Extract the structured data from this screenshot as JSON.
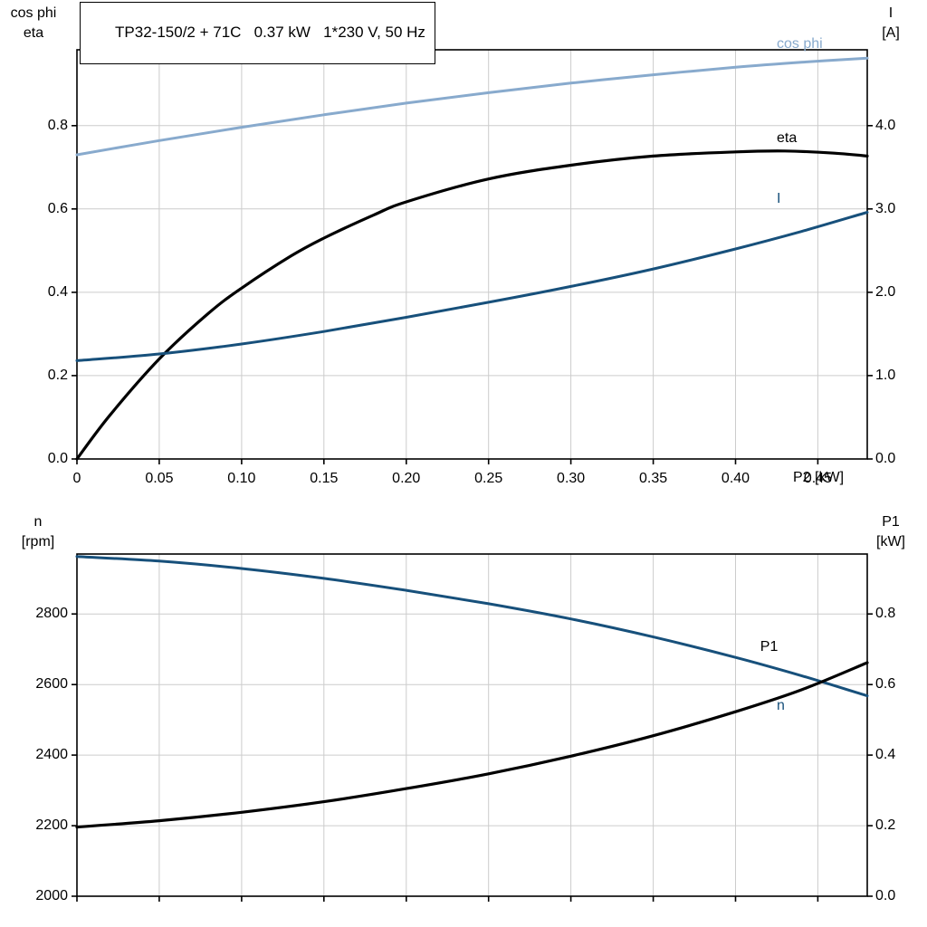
{
  "title_box": {
    "text": "TP32-150/2 + 71C   0.37 kW   1*230 V, 50 Hz"
  },
  "colors": {
    "light_blue": "#88aacd",
    "dark_blue": "#17507b",
    "black": "#000000",
    "grid": "#cccccc",
    "axis": "#000000"
  },
  "chart_data": [
    {
      "type": "line",
      "x_axis": {
        "min": 0,
        "max": 0.48,
        "ticks": [
          0,
          0.05,
          0.1,
          0.15,
          0.2,
          0.25,
          0.3,
          0.35,
          0.4,
          0.45
        ],
        "tick_labels": [
          "0",
          "0.05",
          "0.10",
          "0.15",
          "0.20",
          "0.25",
          "0.30",
          "0.35",
          "0.40",
          "0.45"
        ],
        "label": "P2 [kW]",
        "show_tick_labels": true
      },
      "y_left": {
        "min": 0,
        "max": 0.982,
        "ticks": [
          0.0,
          0.2,
          0.4,
          0.6,
          0.8
        ],
        "tick_labels": [
          "0.0",
          "0.2",
          "0.4",
          "0.6",
          "0.8"
        ],
        "label_lines": [
          "cos phi",
          "eta"
        ]
      },
      "y_right": {
        "min": 0,
        "max": 4.91,
        "ticks": [
          0.0,
          1.0,
          2.0,
          3.0,
          4.0
        ],
        "tick_labels": [
          "0.0",
          "1.0",
          "2.0",
          "3.0",
          "4.0"
        ],
        "label_lines": [
          "I",
          "[A]"
        ]
      },
      "series": [
        {
          "name": "cos phi",
          "axis": "left",
          "color_key": "light_blue",
          "width": 3,
          "points": [
            [
              0,
              0.73
            ],
            [
              0.05,
              0.764
            ],
            [
              0.1,
              0.796
            ],
            [
              0.15,
              0.826
            ],
            [
              0.2,
              0.854
            ],
            [
              0.25,
              0.879
            ],
            [
              0.3,
              0.902
            ],
            [
              0.35,
              0.922
            ],
            [
              0.4,
              0.94
            ],
            [
              0.44,
              0.952
            ],
            [
              0.48,
              0.962
            ]
          ],
          "label": {
            "text": "cos phi",
            "x": 0.425,
            "y": 0.995
          }
        },
        {
          "name": "eta",
          "axis": "left",
          "color_key": "black",
          "width": 3.2,
          "points": [
            [
              0,
              0
            ],
            [
              0.02,
              0.105
            ],
            [
              0.05,
              0.24
            ],
            [
              0.08,
              0.35
            ],
            [
              0.1,
              0.41
            ],
            [
              0.13,
              0.487
            ],
            [
              0.15,
              0.53
            ],
            [
              0.18,
              0.585
            ],
            [
              0.2,
              0.617
            ],
            [
              0.25,
              0.672
            ],
            [
              0.3,
              0.705
            ],
            [
              0.35,
              0.727
            ],
            [
              0.4,
              0.737
            ],
            [
              0.43,
              0.739
            ],
            [
              0.46,
              0.734
            ],
            [
              0.48,
              0.727
            ]
          ],
          "label": {
            "text": "eta",
            "x": 0.425,
            "y": 0.77
          }
        },
        {
          "name": "I",
          "axis": "right",
          "color_key": "dark_blue",
          "width": 3,
          "points": [
            [
              0,
              1.18
            ],
            [
              0.05,
              1.26
            ],
            [
              0.1,
              1.38
            ],
            [
              0.15,
              1.53
            ],
            [
              0.2,
              1.7
            ],
            [
              0.25,
              1.88
            ],
            [
              0.3,
              2.07
            ],
            [
              0.35,
              2.28
            ],
            [
              0.4,
              2.52
            ],
            [
              0.44,
              2.73
            ],
            [
              0.48,
              2.96
            ]
          ],
          "label": {
            "text": "I",
            "x": 0.425,
            "y": 3.12
          }
        }
      ]
    },
    {
      "type": "line",
      "x_axis": {
        "min": 0,
        "max": 0.48,
        "ticks": [
          0,
          0.05,
          0.1,
          0.15,
          0.2,
          0.25,
          0.3,
          0.35,
          0.4,
          0.45
        ],
        "tick_labels": [],
        "label": "",
        "show_tick_labels": false
      },
      "y_left": {
        "min": 2000,
        "max": 2970,
        "ticks": [
          2000,
          2200,
          2400,
          2600,
          2800
        ],
        "tick_labels": [
          "2000",
          "2200",
          "2400",
          "2600",
          "2800"
        ],
        "label_lines": [
          "n",
          "[rpm]"
        ]
      },
      "y_right": {
        "min": 0,
        "max": 0.97,
        "ticks": [
          0.0,
          0.2,
          0.4,
          0.6,
          0.8
        ],
        "tick_labels": [
          "0.0",
          "0.2",
          "0.4",
          "0.6",
          "0.8"
        ],
        "label_lines": [
          "P1",
          "[kW]"
        ]
      },
      "series": [
        {
          "name": "n",
          "axis": "left",
          "color_key": "dark_blue",
          "width": 3,
          "points": [
            [
              0,
              2963
            ],
            [
              0.05,
              2950
            ],
            [
              0.1,
              2929
            ],
            [
              0.15,
              2901
            ],
            [
              0.2,
              2867
            ],
            [
              0.25,
              2829
            ],
            [
              0.3,
              2786
            ],
            [
              0.35,
              2735
            ],
            [
              0.4,
              2677
            ],
            [
              0.44,
              2625
            ],
            [
              0.48,
              2568
            ]
          ],
          "label": {
            "text": "n",
            "x": 0.425,
            "y": 2540
          }
        },
        {
          "name": "P1",
          "axis": "right",
          "color_key": "black",
          "width": 3.2,
          "points": [
            [
              0,
              0.196
            ],
            [
              0.05,
              0.214
            ],
            [
              0.1,
              0.238
            ],
            [
              0.15,
              0.268
            ],
            [
              0.2,
              0.305
            ],
            [
              0.25,
              0.347
            ],
            [
              0.3,
              0.397
            ],
            [
              0.35,
              0.455
            ],
            [
              0.4,
              0.523
            ],
            [
              0.44,
              0.585
            ],
            [
              0.48,
              0.662
            ]
          ],
          "label": {
            "text": "P1",
            "x": 0.415,
            "y": 0.705
          }
        }
      ]
    }
  ]
}
